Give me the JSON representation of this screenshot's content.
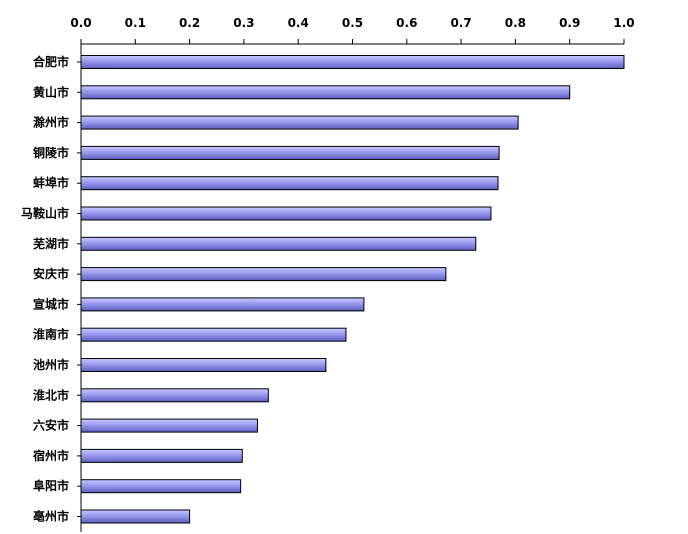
{
  "chart_data": {
    "type": "bar",
    "orientation": "horizontal",
    "categories": [
      "合肥市",
      "黄山市",
      "滁州市",
      "铜陵市",
      "蚌埠市",
      "马鞍山市",
      "芜湖市",
      "安庆市",
      "宣城市",
      "淮南市",
      "池州市",
      "淮北市",
      "六安市",
      "宿州市",
      "阜阳市",
      "亳州市"
    ],
    "values": [
      1.0,
      0.9,
      0.805,
      0.77,
      0.768,
      0.755,
      0.727,
      0.672,
      0.521,
      0.488,
      0.451,
      0.345,
      0.325,
      0.297,
      0.294,
      0.2
    ],
    "xlim": [
      0.0,
      1.0
    ],
    "x_ticks": [
      "0.0",
      "0.1",
      "0.2",
      "0.3",
      "0.4",
      "0.5",
      "0.6",
      "0.7",
      "0.8",
      "0.9",
      "1.0"
    ],
    "x_axis_position": "top",
    "bar_color": "#9999ee",
    "grid": false,
    "legend": "none"
  }
}
